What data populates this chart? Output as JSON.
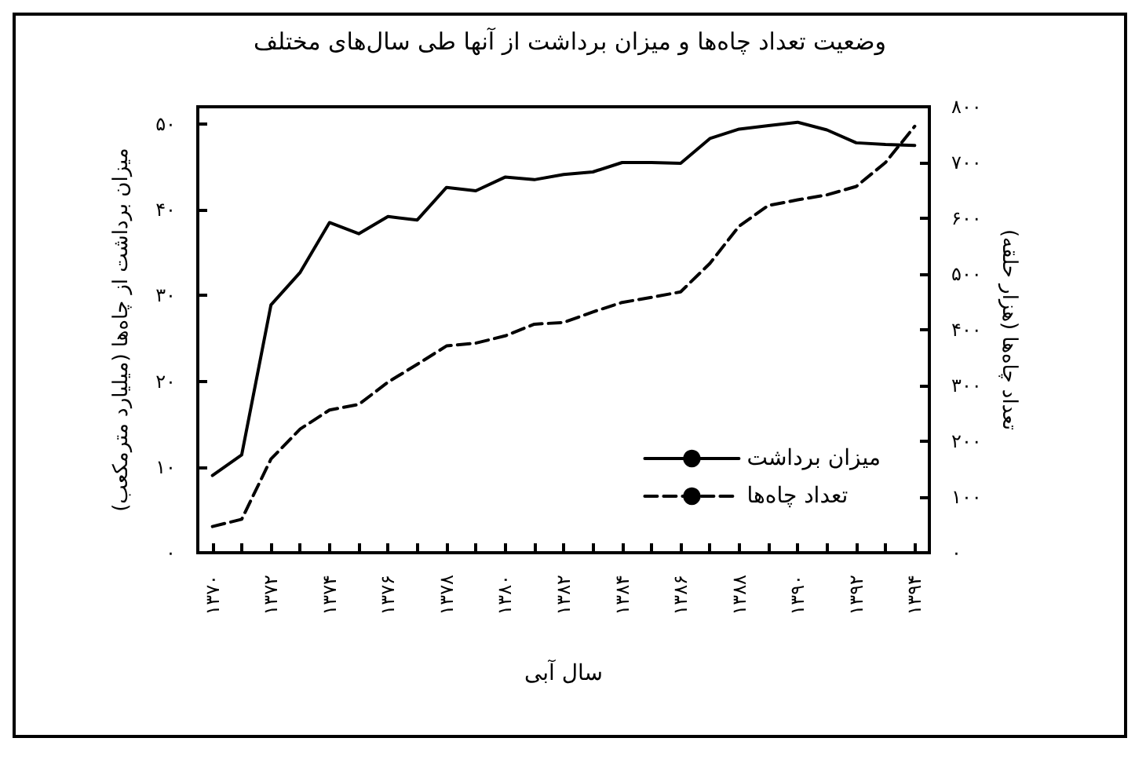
{
  "chart_data": {
    "type": "line",
    "title": "وضعیت تعداد چاه‌ها و میزان برداشت از آنها طی سال‌های مختلف",
    "xlabel": "سال آبی",
    "ylabel": "میزان برداشت از چاه‌ها (میلیارد مترمکعب)",
    "y2label": "تعداد چاه‌ها (هزار حلقه)",
    "categories": [
      "۱۳۷۰",
      null,
      "۱۳۷۲",
      null,
      "۱۳۷۴",
      null,
      "۱۳۷۶",
      null,
      "۱۳۷۸",
      null,
      "۱۳۸۰",
      null,
      "۱۳۸۲",
      null,
      "۱۳۸۴",
      null,
      "۱۳۸۶",
      null,
      "۱۳۸۸",
      null,
      "۱۳۹۰",
      null,
      "۱۳۹۲",
      null,
      "۱۳۹۴"
    ],
    "series": [
      {
        "name": "میزان برداشت",
        "color": "#000000",
        "line_style": "solid",
        "values": [
          9,
          11.4,
          28.9,
          32.7,
          38.5,
          37.2,
          39.2,
          38.8,
          42.6,
          42.2,
          43.8,
          43.5,
          44.1,
          44.4,
          45.5,
          45.5,
          45.4,
          48.3,
          49.4,
          49.8,
          50.2,
          49.3,
          47.8,
          47.6,
          47.5
        ]
      },
      {
        "name": "تعداد چاه‌ها",
        "color": "#000000",
        "line_style": "dashed",
        "axis": "y2",
        "values": [
          47,
          60,
          168,
          222,
          256,
          266,
          306,
          338,
          371,
          376,
          389,
          410,
          413,
          432,
          449,
          458,
          468,
          519,
          586,
          623,
          633,
          642,
          657,
          700,
          765
        ]
      }
    ],
    "ylim": [
      0,
      52
    ],
    "yticks": [
      {
        "value": 0,
        "label": "۰"
      },
      {
        "value": 10,
        "label": "۱۰"
      },
      {
        "value": 20,
        "label": "۲۰"
      },
      {
        "value": 30,
        "label": "۳۰"
      },
      {
        "value": 40,
        "label": "۴۰"
      },
      {
        "value": 50,
        "label": "۵۰"
      }
    ],
    "y2lim": [
      0,
      800
    ],
    "y2ticks": [
      {
        "value": 0,
        "label": "۰"
      },
      {
        "value": 100,
        "label": "۱۰۰"
      },
      {
        "value": 200,
        "label": "۲۰۰"
      },
      {
        "value": 300,
        "label": "۳۰۰"
      },
      {
        "value": 400,
        "label": "۴۰۰"
      },
      {
        "value": 500,
        "label": "۵۰۰"
      },
      {
        "value": 600,
        "label": "۶۰۰"
      },
      {
        "value": 700,
        "label": "۷۰۰"
      },
      {
        "value": 800,
        "label": "۸۰۰"
      }
    ],
    "grid": false,
    "legend": "bottom right",
    "marker": "none"
  }
}
